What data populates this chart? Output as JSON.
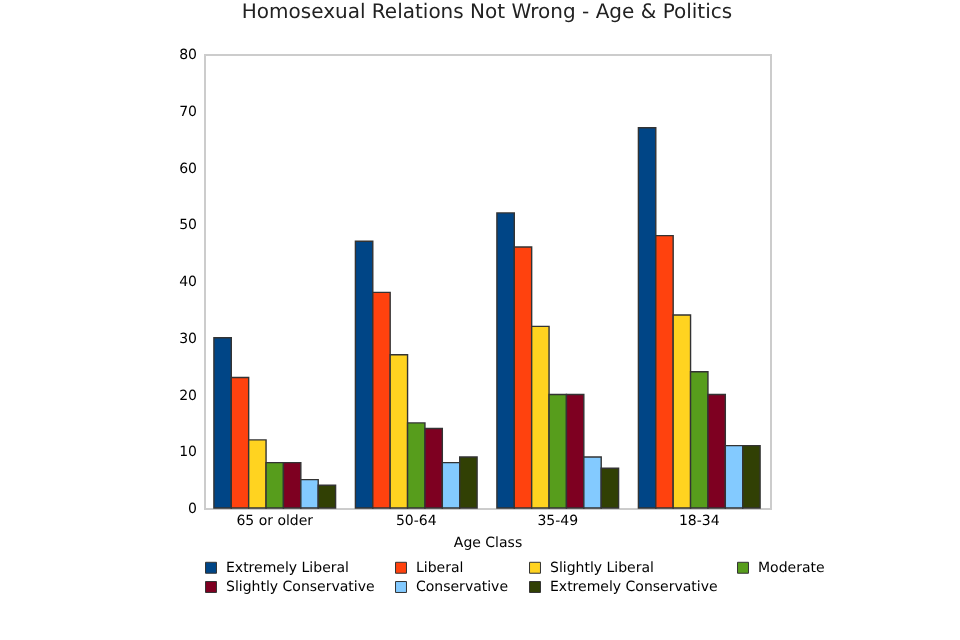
{
  "chart_data": {
    "type": "bar",
    "title": "Homosexual Relations Not Wrong - Age & Politics",
    "xlabel": "Age Class",
    "categories": [
      "65 or older",
      "50-64",
      "35-49",
      "18-34"
    ],
    "series": [
      {
        "name": "Extremely Liberal",
        "color": "#004586",
        "values": [
          30,
          47,
          52,
          67
        ]
      },
      {
        "name": "Liberal",
        "color": "#ff420e",
        "values": [
          23,
          38,
          46,
          48
        ]
      },
      {
        "name": "Slightly Liberal",
        "color": "#ffd320",
        "values": [
          12,
          27,
          32,
          34
        ]
      },
      {
        "name": "Moderate",
        "color": "#579d1c",
        "values": [
          8,
          15,
          20,
          24
        ]
      },
      {
        "name": "Slightly Conservative",
        "color": "#7e0021",
        "values": [
          8,
          14,
          20,
          20
        ]
      },
      {
        "name": "Conservative",
        "color": "#83caff",
        "values": [
          5,
          8,
          9,
          11
        ]
      },
      {
        "name": "Extremely Conservative",
        "color": "#314004",
        "values": [
          4,
          9,
          7,
          11
        ]
      }
    ],
    "ylim": [
      0,
      80
    ],
    "yticks": [
      0,
      10,
      20,
      30,
      40,
      50,
      60,
      70,
      80
    ],
    "grid": false,
    "legend": "bottom"
  }
}
